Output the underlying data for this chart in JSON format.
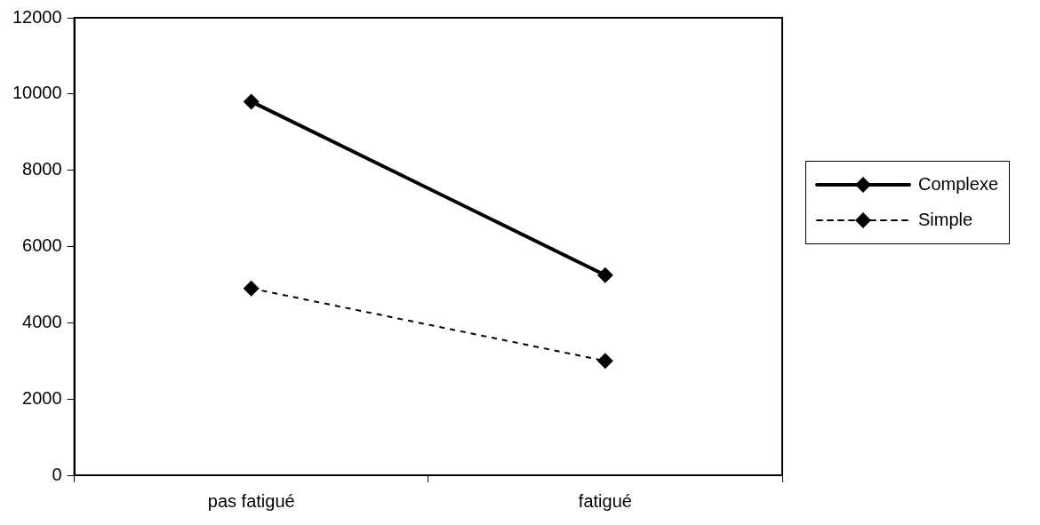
{
  "chart_data": {
    "type": "line",
    "categories": [
      "pas fatigué",
      "fatigué"
    ],
    "series": [
      {
        "name": "Complexe",
        "color": "#000000",
        "values": [
          9800,
          5250
        ],
        "line_style": "solid"
      },
      {
        "name": "Simple",
        "color": "#000000",
        "values": [
          4900,
          3000
        ],
        "line_style": "dashed"
      }
    ],
    "ylim": [
      0,
      12000
    ],
    "yticks": [
      0,
      2000,
      4000,
      6000,
      8000,
      10000,
      12000
    ],
    "grid": false,
    "legend": "right",
    "marker": "diamond"
  }
}
